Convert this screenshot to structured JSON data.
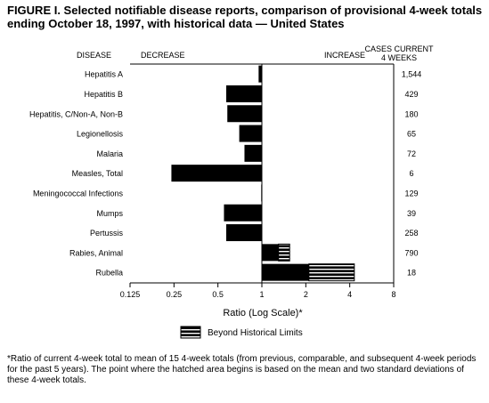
{
  "chart_data": {
    "type": "bar",
    "title": "FIGURE I. Selected notifiable disease reports, comparison of provisional 4-week totals ending October 18, 1997, with historical data — United States",
    "column_headers": {
      "disease": "DISEASE",
      "decrease": "DECREASE",
      "increase": "INCREASE",
      "cases": "CASES CURRENT 4 WEEKS"
    },
    "categories": [
      "Hepatitis A",
      "Hepatitis B",
      "Hepatitis, C/Non-A, Non-B",
      "Legionellosis",
      "Malaria",
      "Measles, Total",
      "Meningococcal Infections",
      "Mumps",
      "Pertussis",
      "Rabies, Animal",
      "Rubella"
    ],
    "values": [
      0.95,
      0.57,
      0.58,
      0.7,
      0.76,
      0.24,
      0.99,
      0.55,
      0.57,
      1.55,
      4.3
    ],
    "beyond_limit_start": [
      null,
      null,
      null,
      null,
      null,
      null,
      null,
      null,
      null,
      1.3,
      2.1
    ],
    "cases": [
      "1,544",
      "429",
      "180",
      "65",
      "72",
      "6",
      "129",
      "39",
      "258",
      "790",
      "18"
    ],
    "x_scale": "log2",
    "xlim": [
      0.125,
      8
    ],
    "xticks": [
      0.125,
      0.25,
      0.5,
      1,
      2,
      4,
      8
    ],
    "xtick_labels": [
      "0.125",
      "0.25",
      "0.5",
      "1",
      "2",
      "4",
      "8"
    ],
    "xlabel": "Ratio (Log Scale)*",
    "legend_label": "Beyond Historical Limits",
    "footnote": "*Ratio of current 4-week total to mean of 15 4-week totals (from previous, comparable, and subsequent 4-week periods for the past 5 years). The point where the hatched area begins is based on the mean and two standard deviations of these 4-week totals."
  }
}
